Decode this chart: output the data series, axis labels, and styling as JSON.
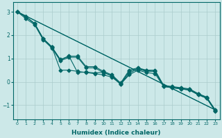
{
  "xlabel": "Humidex (Indice chaleur)",
  "ylabel": "",
  "bg_color": "#cce8e8",
  "grid_color": "#aacccc",
  "line_color": "#006666",
  "xlim": [
    -0.5,
    23.5
  ],
  "ylim": [
    -1.6,
    3.4
  ],
  "yticks": [
    -1,
    0,
    1,
    2,
    3
  ],
  "xticks": [
    0,
    1,
    2,
    3,
    4,
    5,
    6,
    7,
    8,
    9,
    10,
    11,
    12,
    13,
    14,
    15,
    16,
    17,
    18,
    19,
    20,
    21,
    22,
    23
  ],
  "series": [
    [
      3.0,
      2.78,
      2.5,
      1.85,
      1.5,
      0.95,
      1.1,
      1.1,
      0.65,
      0.65,
      0.45,
      0.3,
      -0.05,
      0.5,
      0.6,
      0.5,
      0.5,
      -0.15,
      -0.2,
      -0.25,
      -0.3,
      -0.5,
      -0.65,
      -1.2
    ],
    [
      3.0,
      2.78,
      2.5,
      1.85,
      1.5,
      0.5,
      0.5,
      0.45,
      0.4,
      0.35,
      0.3,
      0.2,
      -0.1,
      0.3,
      0.5,
      0.4,
      0.35,
      -0.2,
      -0.25,
      -0.3,
      -0.35,
      -0.55,
      -0.7,
      -1.25
    ],
    [
      3.0,
      2.78,
      2.5,
      1.85,
      1.5,
      0.95,
      1.1,
      0.4,
      0.42,
      0.38,
      0.42,
      0.25,
      -0.08,
      0.35,
      0.58,
      0.48,
      0.45,
      -0.18,
      -0.22,
      -0.28,
      -0.32,
      -0.52,
      -0.68,
      -1.22
    ],
    [
      3.0,
      2.7,
      2.45,
      1.8,
      1.45,
      0.9,
      1.05,
      1.05,
      0.6,
      0.6,
      0.4,
      0.25,
      -0.1,
      0.45,
      0.55,
      0.45,
      0.45,
      -0.2,
      -0.25,
      -0.3,
      -0.35,
      -0.55,
      -0.7,
      -1.25
    ]
  ],
  "straight_series": [
    {
      "x": [
        0,
        23
      ],
      "y": [
        3.0,
        -1.2
      ]
    },
    {
      "x": [
        0,
        23
      ],
      "y": [
        3.0,
        -1.2
      ]
    }
  ],
  "marker": "D",
  "markersize": 2.5,
  "linewidth": 0.8
}
